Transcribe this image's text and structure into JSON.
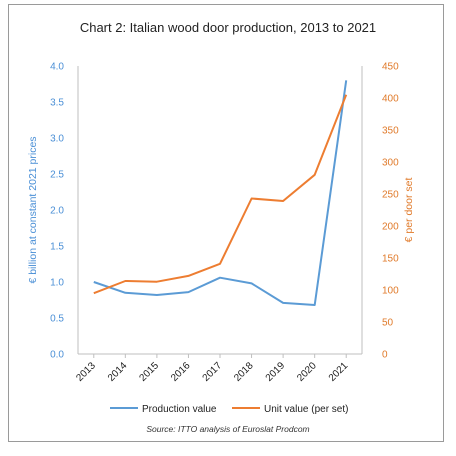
{
  "chart_data": {
    "type": "line",
    "title": "Chart 2: Italian wood door production, 2013 to 2021",
    "categories": [
      "2013",
      "2014",
      "2015",
      "2016",
      "2017",
      "2018",
      "2019",
      "2020",
      "2021"
    ],
    "y_left": {
      "label": "€ billion at constant 2021 prices",
      "ticks": [
        "0.0",
        "0.5",
        "1.0",
        "1.5",
        "2.0",
        "2.5",
        "3.0",
        "3.5",
        "4.0"
      ],
      "range": [
        0,
        4
      ],
      "color": "#4a8fd6"
    },
    "y_right": {
      "label": "€ per door set",
      "ticks": [
        "0",
        "50",
        "100",
        "150",
        "200",
        "250",
        "300",
        "350",
        "400",
        "450"
      ],
      "range": [
        0,
        450
      ],
      "color": "#e07a2a"
    },
    "series": [
      {
        "name": "Production value",
        "axis": "left",
        "color": "#5b9bd5",
        "values": [
          1.0,
          0.85,
          0.82,
          0.86,
          1.06,
          0.98,
          0.71,
          0.68,
          3.8
        ]
      },
      {
        "name": "Unit value (per set)",
        "axis": "right",
        "color": "#ed7d31",
        "values": [
          95,
          114,
          113,
          122,
          141,
          243,
          239,
          280,
          405
        ]
      }
    ],
    "legend_position": "bottom",
    "grid": false,
    "source": "Source: ITTO analysis of Euroslat Prodcom"
  }
}
